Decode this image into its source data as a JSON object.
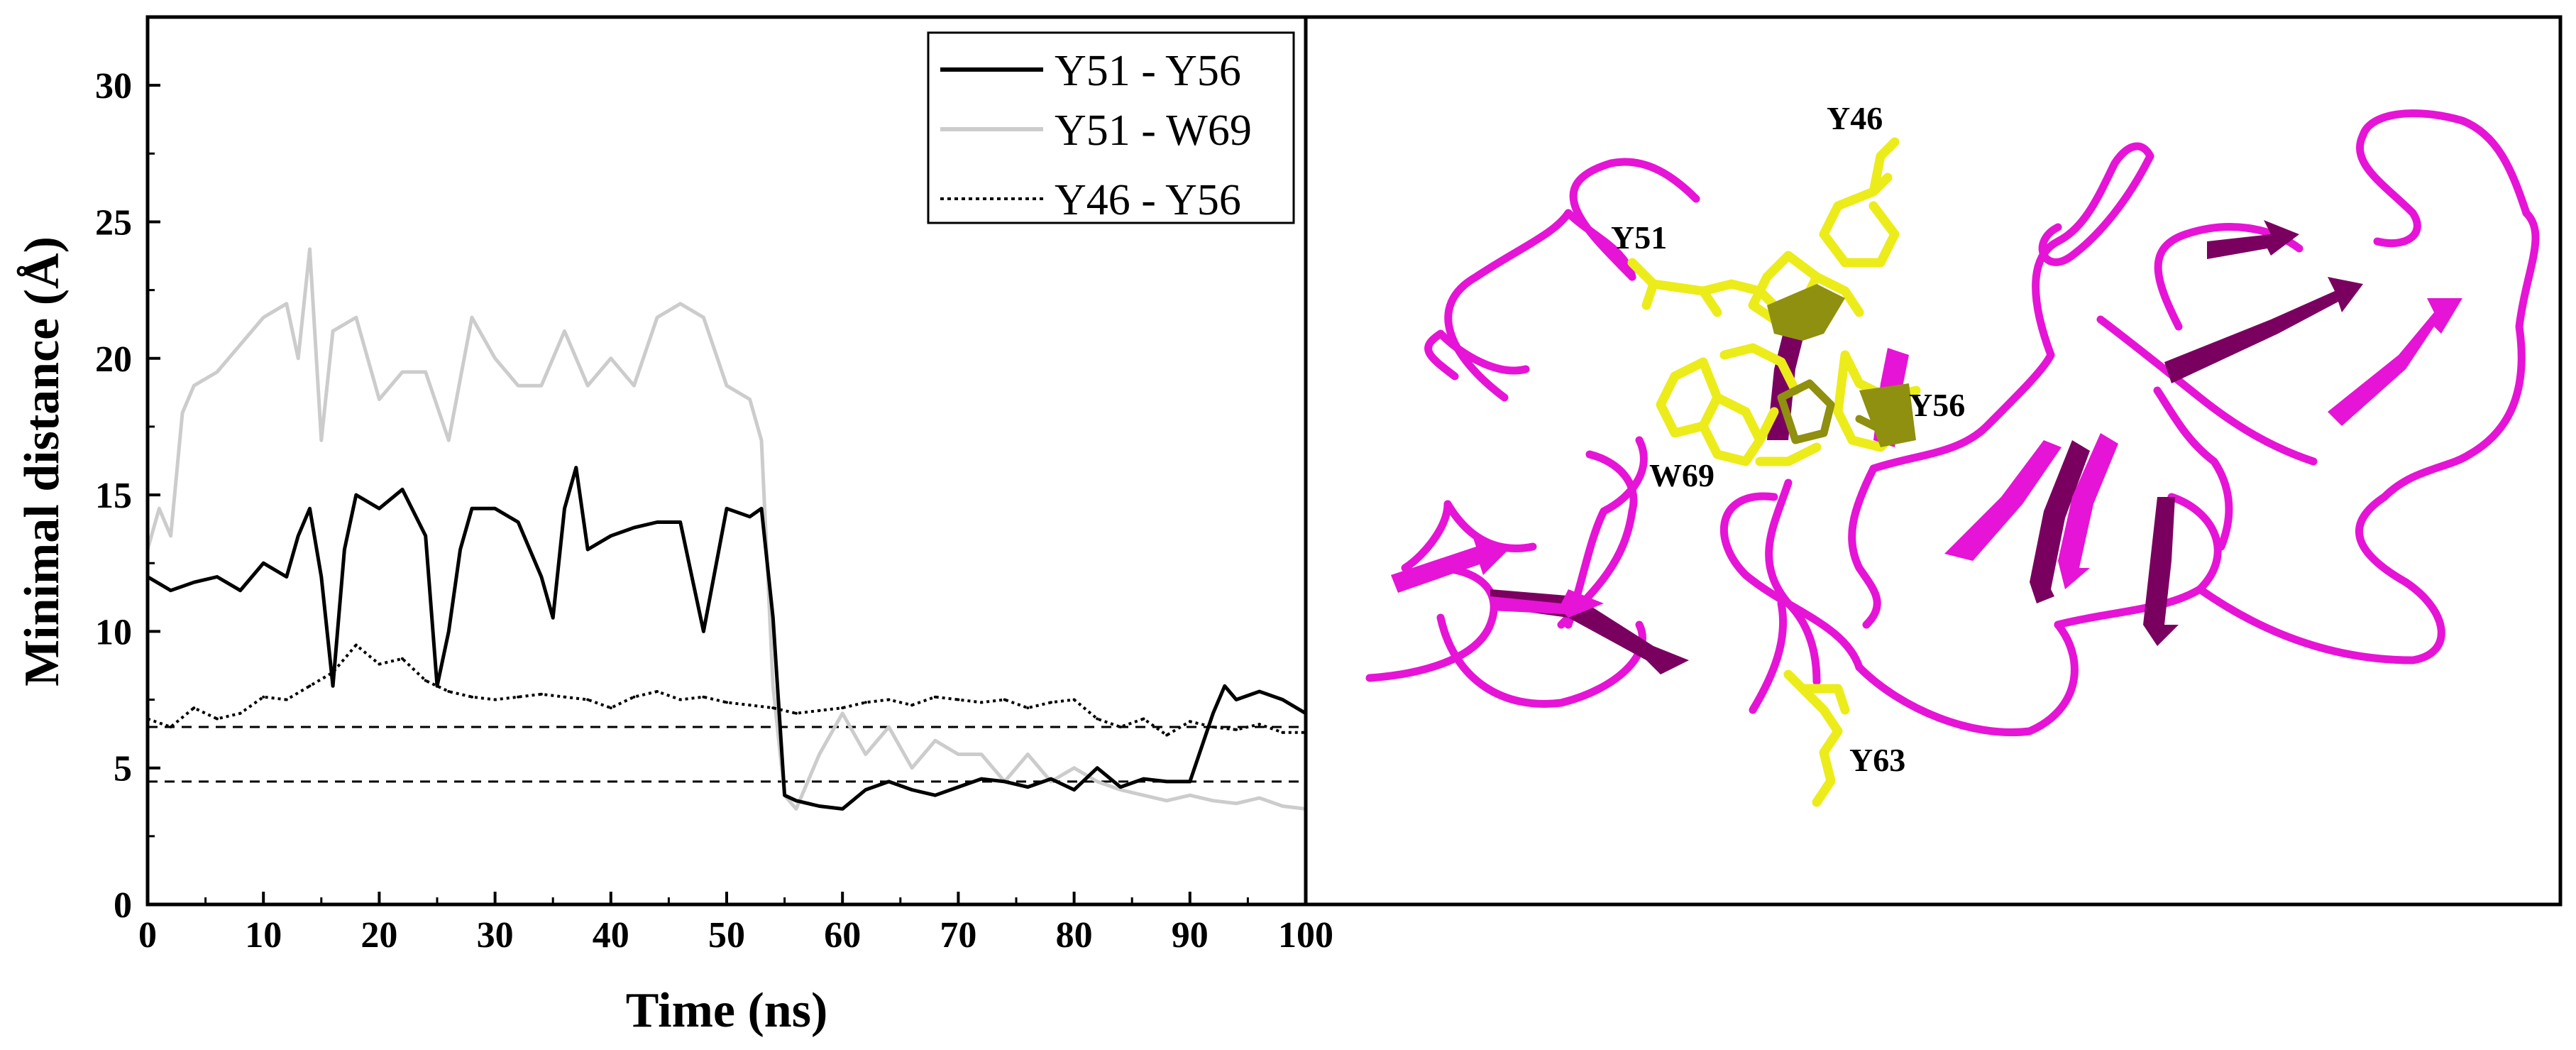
{
  "chart_data": {
    "type": "line",
    "xlabel": "Time (ns)",
    "ylabel": "Minimal distance (Å)",
    "xlim": [
      0,
      100
    ],
    "ylim": [
      0,
      32.5
    ],
    "x_ticks": [
      "0",
      "10",
      "20",
      "30",
      "40",
      "50",
      "60",
      "70",
      "80",
      "90",
      "100"
    ],
    "y_ticks": [
      "0",
      "5",
      "10",
      "15",
      "20",
      "25",
      "30"
    ],
    "legend_position": "top-right",
    "reference_lines": [
      4.5,
      6.5
    ],
    "series": [
      {
        "name": "Y51 - Y56",
        "color": "#000000",
        "style": "solid",
        "x": [
          0,
          2,
          4,
          6,
          8,
          10,
          12,
          13,
          14,
          15,
          16,
          17,
          18,
          20,
          22,
          24,
          25,
          26,
          27,
          28,
          30,
          32,
          34,
          35,
          36,
          37,
          38,
          40,
          42,
          44,
          46,
          47,
          48,
          50,
          52,
          53,
          54,
          55,
          56,
          58,
          60,
          62,
          64,
          66,
          68,
          70,
          72,
          74,
          76,
          78,
          80,
          82,
          84,
          86,
          88,
          90,
          92,
          93,
          94,
          96,
          98,
          100
        ],
        "y": [
          12,
          11.5,
          11.8,
          12,
          11.5,
          12.5,
          12,
          13.5,
          14.5,
          12,
          8,
          13,
          15,
          14.5,
          15.2,
          13.5,
          8,
          10,
          13,
          14.5,
          14.5,
          14,
          12,
          10.5,
          14.5,
          16,
          13,
          13.5,
          13.8,
          14,
          14,
          12,
          10,
          14.5,
          14.2,
          14.5,
          10.5,
          4,
          3.8,
          3.6,
          3.5,
          4.2,
          4.5,
          4.2,
          4,
          4.3,
          4.6,
          4.5,
          4.3,
          4.6,
          4.2,
          5,
          4.3,
          4.6,
          4.5,
          4.5,
          7,
          8,
          7.5,
          7.8,
          7.5,
          7
        ]
      },
      {
        "name": "Y51 - W69",
        "color": "#cccccc",
        "style": "solid",
        "x": [
          0,
          1,
          2,
          3,
          4,
          6,
          8,
          10,
          12,
          13,
          14,
          15,
          16,
          18,
          20,
          22,
          24,
          26,
          28,
          30,
          32,
          34,
          36,
          38,
          40,
          42,
          44,
          46,
          48,
          50,
          52,
          53,
          54,
          55,
          56,
          58,
          60,
          62,
          64,
          66,
          68,
          70,
          72,
          74,
          76,
          78,
          80,
          82,
          84,
          86,
          88,
          90,
          92,
          94,
          96,
          98,
          100
        ],
        "y": [
          13,
          14.5,
          13.5,
          18,
          19,
          19.5,
          20.5,
          21.5,
          22,
          20,
          24,
          17,
          21,
          21.5,
          18.5,
          19.5,
          19.5,
          17,
          21.5,
          20,
          19,
          19,
          21,
          19,
          20,
          19,
          21.5,
          22,
          21.5,
          19,
          18.5,
          17,
          8,
          4,
          3.5,
          5.5,
          7,
          5.5,
          6.5,
          5,
          6,
          5.5,
          5.5,
          4.5,
          5.5,
          4.5,
          5,
          4.5,
          4.2,
          4,
          3.8,
          4,
          3.8,
          3.7,
          3.9,
          3.6,
          3.5
        ]
      },
      {
        "name": "Y46 - Y56",
        "color": "#000000",
        "style": "dotted",
        "x": [
          0,
          2,
          4,
          6,
          8,
          10,
          12,
          14,
          16,
          18,
          20,
          22,
          24,
          26,
          28,
          30,
          32,
          34,
          36,
          38,
          40,
          42,
          44,
          46,
          48,
          50,
          52,
          54,
          56,
          58,
          60,
          62,
          64,
          66,
          68,
          70,
          72,
          74,
          76,
          78,
          80,
          82,
          84,
          86,
          88,
          90,
          92,
          94,
          96,
          98,
          100
        ],
        "y": [
          6.8,
          6.5,
          7.2,
          6.8,
          7,
          7.6,
          7.5,
          8,
          8.5,
          9.5,
          8.8,
          9,
          8.2,
          7.8,
          7.6,
          7.5,
          7.6,
          7.7,
          7.6,
          7.5,
          7.2,
          7.6,
          7.8,
          7.5,
          7.6,
          7.4,
          7.3,
          7.2,
          7,
          7.1,
          7.2,
          7.4,
          7.5,
          7.3,
          7.6,
          7.5,
          7.4,
          7.5,
          7.2,
          7.4,
          7.5,
          6.8,
          6.5,
          6.8,
          6.2,
          6.7,
          6.5,
          6.4,
          6.6,
          6.3,
          6.3
        ]
      }
    ]
  },
  "structure_panel": {
    "residue_labels": [
      "Y46",
      "Y51",
      "Y56",
      "W69",
      "Y63"
    ],
    "ribbon_color": "#e614d6",
    "sheet_dark_color": "#7a0060",
    "sidechain_color": "#ecec1a",
    "sidechain_dark_color": "#8f8f10"
  }
}
